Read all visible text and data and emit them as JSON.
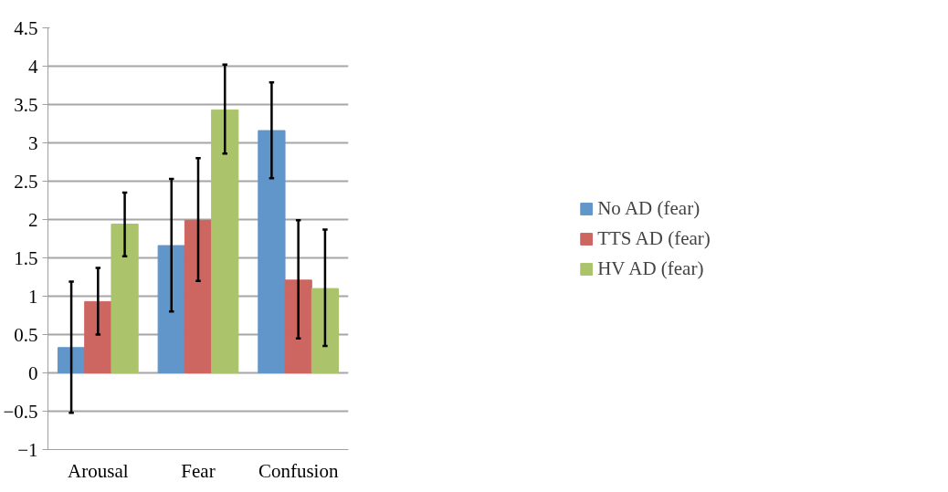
{
  "chart_data": {
    "type": "bar",
    "categories": [
      "Arousal",
      "Fear",
      "Confusion"
    ],
    "series": [
      {
        "name": "No AD (fear)",
        "color": "#6096c9",
        "values": [
          0.33,
          1.66,
          3.16
        ],
        "errors": [
          [
            -0.52,
            1.19
          ],
          [
            0.8,
            2.53
          ],
          [
            2.54,
            3.79
          ]
        ]
      },
      {
        "name": "TTS AD (fear)",
        "color": "#cd6560",
        "values": [
          0.93,
          1.99,
          1.21
        ],
        "errors": [
          [
            0.5,
            1.37
          ],
          [
            1.2,
            2.8
          ],
          [
            0.45,
            1.99
          ]
        ]
      },
      {
        "name": "HV AD (fear)",
        "color": "#abc46b",
        "values": [
          1.94,
          3.43,
          1.1
        ],
        "errors": [
          [
            1.52,
            2.35
          ],
          [
            2.86,
            4.02
          ],
          [
            0.35,
            1.87
          ]
        ]
      }
    ],
    "ylim": [
      -1,
      4.5
    ],
    "yticks": [
      -1,
      -0.5,
      0,
      0.5,
      1,
      1.5,
      2,
      2.5,
      3,
      3.5,
      4,
      4.5
    ],
    "grid": "y",
    "legend": "right"
  }
}
